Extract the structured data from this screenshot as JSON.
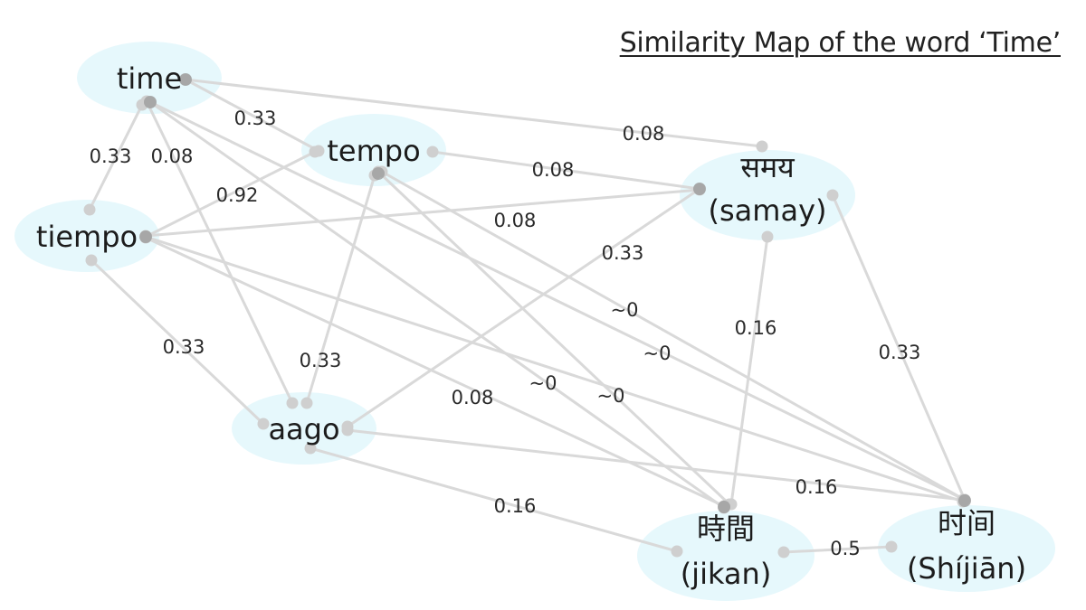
{
  "title": "Similarity Map of the word ‘Time’",
  "colors": {
    "node_fill": "#e6f8fc",
    "edge": "#d9d9d9",
    "endpoint": "#cfcfcf",
    "endpoint_dark": "#9a9a9a",
    "text": "#1c1c1c"
  },
  "nodes": [
    {
      "id": "time",
      "lines": [
        "time"
      ]
    },
    {
      "id": "tempo",
      "lines": [
        "tempo"
      ]
    },
    {
      "id": "tiempo",
      "lines": [
        "tiempo"
      ]
    },
    {
      "id": "samay",
      "lines": [
        "समय",
        "(samay)"
      ]
    },
    {
      "id": "aago",
      "lines": [
        "aago"
      ]
    },
    {
      "id": "jikan",
      "lines": [
        "時間",
        "(jikan)"
      ]
    },
    {
      "id": "shijian",
      "lines": [
        "时间",
        "(Shíjiān)"
      ]
    }
  ],
  "edges": [
    {
      "source": "time",
      "target": "tempo",
      "label": "0.33"
    },
    {
      "source": "time",
      "target": "samay",
      "label": "0.08"
    },
    {
      "source": "time",
      "target": "tiempo",
      "label": "0.33"
    },
    {
      "source": "time",
      "target": "aago",
      "label": "0.08"
    },
    {
      "source": "time",
      "target": "jikan",
      "label": "~0"
    },
    {
      "source": "time",
      "target": "shijian",
      "label": "~0"
    },
    {
      "source": "tempo",
      "target": "samay",
      "label": "0.08"
    },
    {
      "source": "tempo",
      "target": "tiempo",
      "label": "0.92"
    },
    {
      "source": "tempo",
      "target": "aago",
      "label": "0.33"
    },
    {
      "source": "tempo",
      "target": "jikan",
      "label": "~0"
    },
    {
      "source": "tempo",
      "target": "shijian",
      "label": "~0"
    },
    {
      "source": "tiempo",
      "target": "samay",
      "label": "0.08"
    },
    {
      "source": "tiempo",
      "target": "aago",
      "label": "0.33"
    },
    {
      "source": "tiempo",
      "target": "jikan",
      "label": "0.08"
    },
    {
      "source": "tiempo",
      "target": "shijian",
      "label": ""
    },
    {
      "source": "samay",
      "target": "aago",
      "label": "0.33"
    },
    {
      "source": "samay",
      "target": "jikan",
      "label": "0.16"
    },
    {
      "source": "samay",
      "target": "shijian",
      "label": "0.33"
    },
    {
      "source": "aago",
      "target": "jikan",
      "label": "0.16"
    },
    {
      "source": "aago",
      "target": "shijian",
      "label": "0.16"
    },
    {
      "source": "jikan",
      "target": "shijian",
      "label": "0.5"
    }
  ]
}
